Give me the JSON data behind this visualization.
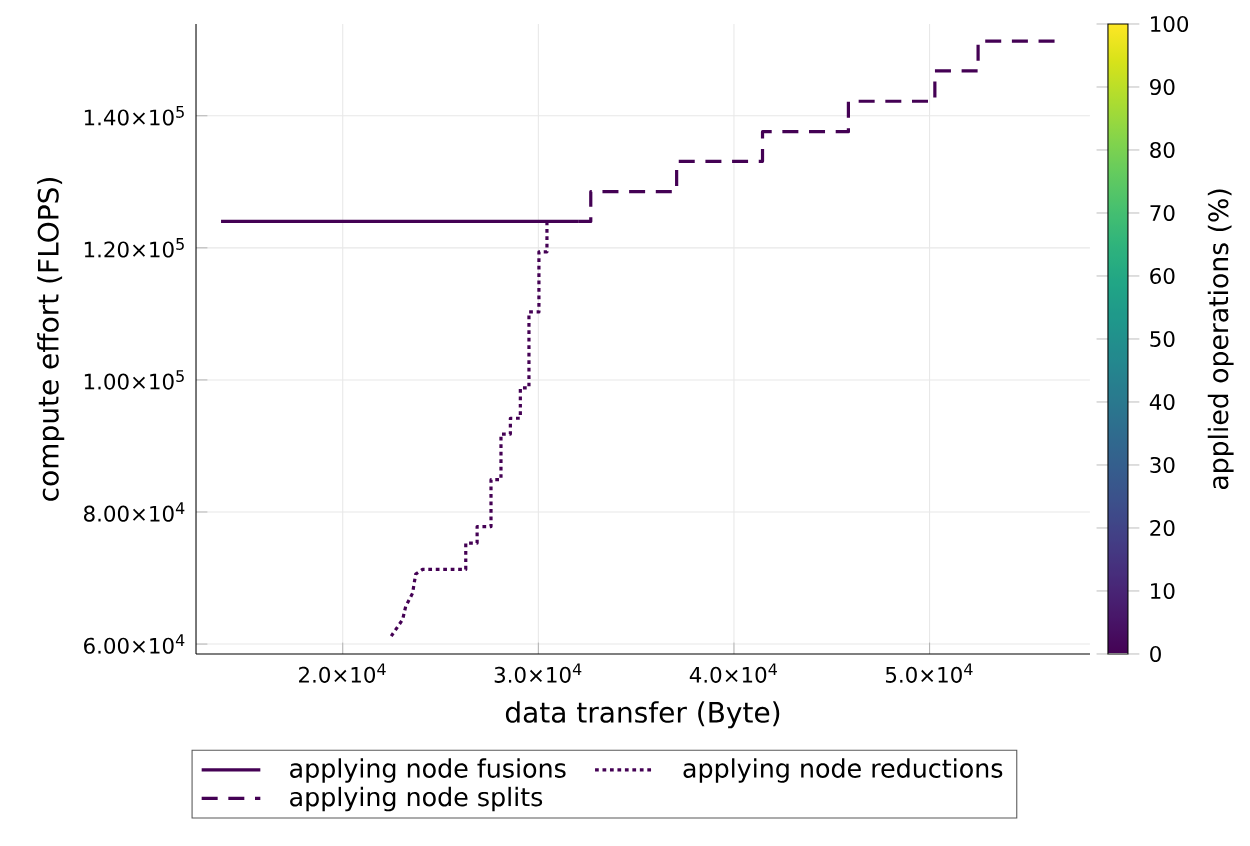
{
  "chart_data": {
    "type": "line",
    "xlabel": "data transfer (Byte)",
    "ylabel": "compute effort (FLOPS)",
    "clabel": "applied operations (%)",
    "xlim": [
      12500,
      58200
    ],
    "ylim": [
      58500,
      153900
    ],
    "xticks": [
      {
        "value": 20000,
        "label": "2.0×10$^{4}$"
      },
      {
        "value": 30000,
        "label": "3.0×10$^{4}$"
      },
      {
        "value": 40000,
        "label": "4.0×10$^{4}$"
      },
      {
        "value": 50000,
        "label": "5.0×10$^{4}$"
      }
    ],
    "yticks": [
      {
        "value": 60000,
        "label": "6.00×10$^{4}$"
      },
      {
        "value": 80000,
        "label": "8.00×10$^{4}$"
      },
      {
        "value": 100000,
        "label": "1.00×10$^{5}$"
      },
      {
        "value": 120000,
        "label": "1.20×10$^{5}$"
      },
      {
        "value": 140000,
        "label": "1.40×10$^{5}$"
      }
    ],
    "clim": [
      0,
      100
    ],
    "cticks": [
      0,
      10,
      20,
      30,
      40,
      50,
      60,
      70,
      80,
      90,
      100
    ],
    "grid": true,
    "legend": "bottom",
    "series": [
      {
        "name": "applying node fusions",
        "color": "#440154",
        "line_style": "solid",
        "x": [
          32070,
          27500,
          22900,
          18400,
          13780
        ],
        "values": [
          124000,
          124000,
          124000,
          124000,
          124000
        ]
      },
      {
        "name": "applying node splits",
        "color": "#440154",
        "line_style": "dashed",
        "x": [
          32070,
          32680,
          32680,
          37070,
          37070,
          41460,
          41460,
          45850,
          45850,
          50270,
          50270,
          52480,
          52480,
          56390
        ],
        "values": [
          124000,
          124000,
          128500,
          128500,
          133100,
          133100,
          137600,
          137600,
          142200,
          142200,
          146800,
          146800,
          151300,
          151300
        ]
      },
      {
        "name": "applying node reductions",
        "color": "#440154",
        "line_style": "dotted",
        "x": [
          30440,
          30440,
          30030,
          30030,
          29520,
          29520,
          29080,
          29080,
          28570,
          28570,
          28090,
          28090,
          27580,
          27580,
          26870,
          26870,
          26290,
          26290,
          24080,
          23730,
          23570,
          23220,
          23060,
          22480
        ],
        "values": [
          124000,
          119400,
          119400,
          110300,
          110300,
          98800,
          98800,
          94200,
          94200,
          91800,
          91800,
          84900,
          84900,
          77800,
          77800,
          75300,
          75300,
          71300,
          71300,
          70600,
          67700,
          65700,
          63700,
          61200
        ]
      }
    ]
  }
}
